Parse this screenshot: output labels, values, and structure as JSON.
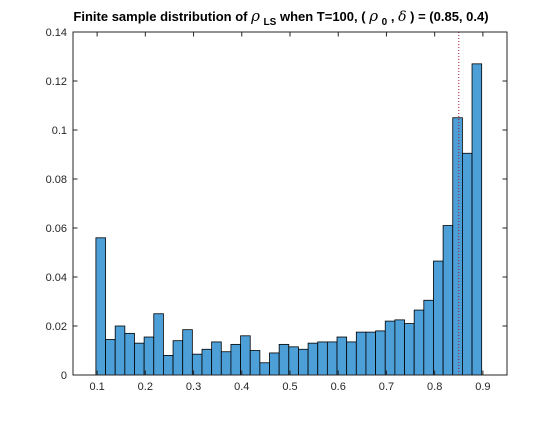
{
  "chart_data": {
    "type": "bar",
    "subtype": "histogram",
    "title": {
      "prefix": "Finite sample distribution of ",
      "rho": "ρ",
      "rho_sub": "LS",
      "middle": " when T=100, (",
      "rho0": "ρ",
      "rho0_sub": "0",
      "sep": ",",
      "delta": "δ",
      "suffix": ") = (0.85, 0.4)"
    },
    "xlabel": "",
    "ylabel": "",
    "xlim": [
      0.05,
      0.95
    ],
    "ylim": [
      0,
      0.14
    ],
    "x_ticks": [
      0.1,
      0.2,
      0.3,
      0.4,
      0.5,
      0.6,
      0.7,
      0.8,
      0.9
    ],
    "x_tick_labels": [
      "0.1",
      "0.2",
      "0.3",
      "0.4",
      "0.5",
      "0.6",
      "0.7",
      "0.8",
      "0.9"
    ],
    "y_ticks": [
      0,
      0.02,
      0.04,
      0.06,
      0.08,
      0.1,
      0.12,
      0.14
    ],
    "y_tick_labels": [
      "0",
      "0.02",
      "0.04",
      "0.06",
      "0.08",
      "0.1",
      "0.12",
      "0.14"
    ],
    "bin_start": 0.0975,
    "bin_width": 0.02,
    "values": [
      0.056,
      0.0145,
      0.02,
      0.017,
      0.013,
      0.0155,
      0.025,
      0.008,
      0.014,
      0.0185,
      0.0085,
      0.0105,
      0.0135,
      0.0095,
      0.0125,
      0.016,
      0.01,
      0.005,
      0.009,
      0.0125,
      0.0115,
      0.0105,
      0.013,
      0.0135,
      0.0135,
      0.0155,
      0.0135,
      0.0175,
      0.0175,
      0.018,
      0.022,
      0.0225,
      0.021,
      0.0265,
      0.0305,
      0.0465,
      0.061,
      0.105,
      0.0905,
      0.127
    ],
    "reference_line": {
      "x": 0.85,
      "style": "dotted",
      "color": "#a2142f"
    },
    "bar_color": "#4d9fd8",
    "edge_color": "#000000",
    "grid": false,
    "legend": "none"
  }
}
